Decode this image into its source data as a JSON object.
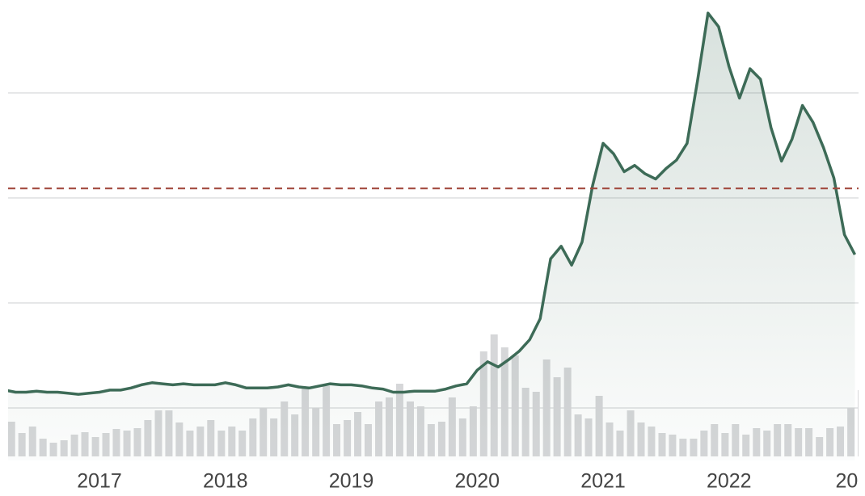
{
  "chart_data": {
    "type": "line",
    "x": [
      2016.25,
      2016.333,
      2016.417,
      2016.5,
      2016.583,
      2016.667,
      2016.75,
      2016.833,
      2016.917,
      2017.0,
      2017.083,
      2017.167,
      2017.25,
      2017.333,
      2017.417,
      2017.5,
      2017.583,
      2017.667,
      2017.75,
      2017.833,
      2017.917,
      2018.0,
      2018.083,
      2018.167,
      2018.25,
      2018.333,
      2018.417,
      2018.5,
      2018.583,
      2018.667,
      2018.75,
      2018.833,
      2018.917,
      2019.0,
      2019.083,
      2019.167,
      2019.25,
      2019.333,
      2019.417,
      2019.5,
      2019.583,
      2019.667,
      2019.75,
      2019.833,
      2019.917,
      2020.0,
      2020.083,
      2020.167,
      2020.25,
      2020.333,
      2020.417,
      2020.5,
      2020.583,
      2020.667,
      2020.75,
      2020.833,
      2020.917,
      2021.0,
      2021.083,
      2021.167,
      2021.25,
      2021.333,
      2021.417,
      2021.5,
      2021.583,
      2021.667,
      2021.75,
      2021.833,
      2021.917,
      2022.0,
      2022.083,
      2022.167,
      2022.25,
      2022.333,
      2022.417,
      2022.5,
      2022.583,
      2022.667,
      2022.75,
      2022.833,
      2022.917,
      2023.0
    ],
    "series": [
      {
        "color": "#3d6b57",
        "values": [
          67,
          65,
          65,
          66,
          65,
          65,
          64,
          63,
          64,
          65,
          67,
          67,
          69,
          72,
          74,
          73,
          72,
          73,
          72,
          72,
          72,
          74,
          72,
          69,
          69,
          69,
          70,
          72,
          70,
          69,
          71,
          73,
          72,
          72,
          71,
          69,
          68,
          65,
          65,
          66,
          66,
          66,
          68,
          71,
          73,
          86,
          94,
          89,
          96,
          104,
          115,
          135,
          192,
          204,
          186,
          208,
          262,
          302,
          292,
          275,
          281,
          273,
          268,
          278,
          286,
          302,
          362,
          426,
          413,
          375,
          345,
          373,
          363,
          317,
          285,
          306,
          338,
          322,
          298,
          269,
          215,
          196
        ]
      },
      {
        "color": "#d6d7d9",
        "axis": "y2",
        "values": [
          43,
          29,
          37,
          22,
          17,
          20,
          27,
          30,
          24,
          29,
          34,
          32,
          35,
          45,
          57,
          57,
          42,
          32,
          37,
          45,
          32,
          37,
          32,
          47,
          60,
          47,
          68,
          52,
          85,
          60,
          87,
          40,
          45,
          55,
          40,
          68,
          73,
          90,
          68,
          62,
          40,
          43,
          73,
          47,
          62,
          130,
          151,
          135,
          125,
          85,
          80,
          120,
          98,
          110,
          52,
          47,
          75,
          42,
          32,
          57,
          42,
          37,
          29,
          27,
          22,
          22,
          32,
          40,
          29,
          40,
          27,
          35,
          32,
          40,
          40,
          35,
          35,
          24,
          35,
          37,
          60,
          82
        ]
      }
    ],
    "xlim": [
      2016.21,
      2023.08
    ],
    "xticks": [
      2017,
      2018,
      2019,
      2020,
      2021,
      2022,
      {
        "value": 2023,
        "label": "20"
      }
    ],
    "ylim": [
      0,
      440
    ],
    "yticks": [
      50,
      150,
      250,
      350
    ],
    "y2lim": [
      0,
      567
    ],
    "grid": true,
    "reference_line": {
      "value": 259,
      "color": "#a0463a"
    }
  }
}
